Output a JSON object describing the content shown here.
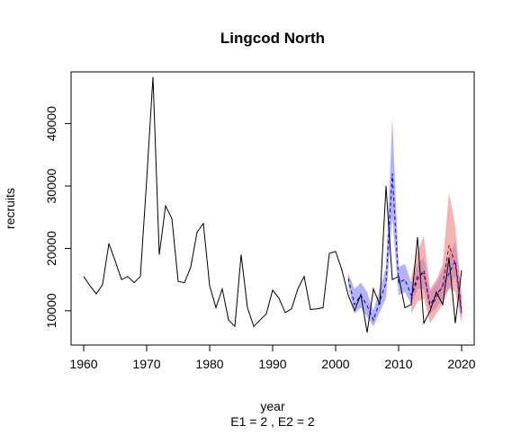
{
  "chart_data": {
    "type": "line",
    "title": "Lingcod North",
    "xlabel": "year",
    "ylabel": "recruits",
    "subtitle": "E1 = 2 , E2 = 2",
    "xlim": [
      1958,
      2022
    ],
    "ylim": [
      4500,
      48300
    ],
    "x_ticks": [
      1960,
      1970,
      1980,
      1990,
      2000,
      2010,
      2020
    ],
    "y_ticks": [
      10000,
      20000,
      30000,
      40000
    ],
    "grid": false,
    "colors": {
      "observed": "#000000",
      "blue_band": "#8080ff",
      "red_band": "#f08080",
      "blue_line": "#0000cc",
      "red_line": "#8b0000"
    },
    "series": [
      {
        "role": "observed",
        "x": [
          1960,
          1961,
          1962,
          1963,
          1964,
          1965,
          1966,
          1967,
          1968,
          1969,
          1970,
          1971,
          1972,
          1973,
          1974,
          1975,
          1976,
          1977,
          1978,
          1979,
          1980,
          1981,
          1982,
          1983,
          1984,
          1985,
          1986,
          1987,
          1988,
          1989,
          1990,
          1991,
          1992,
          1993,
          1994,
          1995,
          1996,
          1997,
          1998,
          1999,
          2000,
          2001,
          2002,
          2003,
          2004,
          2005,
          2006,
          2007,
          2008,
          2009,
          2010,
          2011,
          2012,
          2013,
          2014,
          2015,
          2016,
          2017,
          2018,
          2019,
          2020
        ],
        "y": [
          15500,
          14000,
          12700,
          14200,
          20800,
          18000,
          15000,
          15500,
          14500,
          15500,
          31000,
          47500,
          19000,
          26800,
          24800,
          14700,
          14500,
          17000,
          22600,
          24000,
          14000,
          10500,
          13500,
          8500,
          7500,
          19000,
          10500,
          7500,
          8500,
          9500,
          13300,
          12000,
          9700,
          10300,
          13500,
          15500,
          10200,
          10300,
          10500,
          19200,
          19500,
          16500,
          12500,
          10000,
          12600,
          6500,
          13500,
          11000,
          30000,
          15000,
          15500,
          10500,
          11000,
          21800,
          8000,
          10000,
          13000,
          11000,
          18500,
          8000,
          16500
        ]
      },
      {
        "role": "blue_forecast_mean",
        "x": [
          2002,
          2003,
          2004,
          2005,
          2006,
          2007,
          2008,
          2009,
          2010,
          2011,
          2012,
          2013,
          2014,
          2015,
          2016,
          2017,
          2018,
          2019,
          2020
        ],
        "y": [
          15200,
          11000,
          12500,
          10800,
          8500,
          11500,
          14500,
          32000,
          14500,
          15000,
          12500,
          15500,
          16000,
          11000,
          12500,
          14000,
          16000,
          18000,
          10000
        ]
      },
      {
        "role": "blue_forecast_band",
        "x": [
          2002,
          2003,
          2004,
          2005,
          2006,
          2007,
          2008,
          2009,
          2010,
          2011,
          2012,
          2013,
          2014,
          2015,
          2016,
          2017,
          2018,
          2019,
          2020
        ],
        "lower": [
          14000,
          9500,
          10500,
          9000,
          7500,
          9800,
          12000,
          25000,
          12500,
          13000,
          11000,
          13500,
          13500,
          9500,
          10500,
          12000,
          13500,
          15500,
          8500
        ],
        "upper": [
          16000,
          13500,
          14500,
          13000,
          10000,
          13500,
          17000,
          41000,
          17000,
          17500,
          14500,
          17500,
          18500,
          13000,
          14500,
          16500,
          19000,
          21000,
          12000
        ]
      },
      {
        "role": "red_forecast_mean",
        "x": [
          2012,
          2013,
          2014,
          2015,
          2016,
          2017,
          2018,
          2019,
          2020
        ],
        "y": [
          12000,
          15000,
          16500,
          10500,
          12000,
          14000,
          20500,
          17500,
          9500
        ]
      },
      {
        "role": "red_forecast_band",
        "x": [
          2012,
          2013,
          2014,
          2015,
          2016,
          2017,
          2018,
          2019,
          2020
        ],
        "lower": [
          9500,
          11500,
          12000,
          8000,
          9500,
          11000,
          13500,
          13000,
          8000
        ],
        "upper": [
          15500,
          19500,
          22000,
          13500,
          15000,
          17500,
          29000,
          23500,
          12500
        ]
      }
    ]
  }
}
